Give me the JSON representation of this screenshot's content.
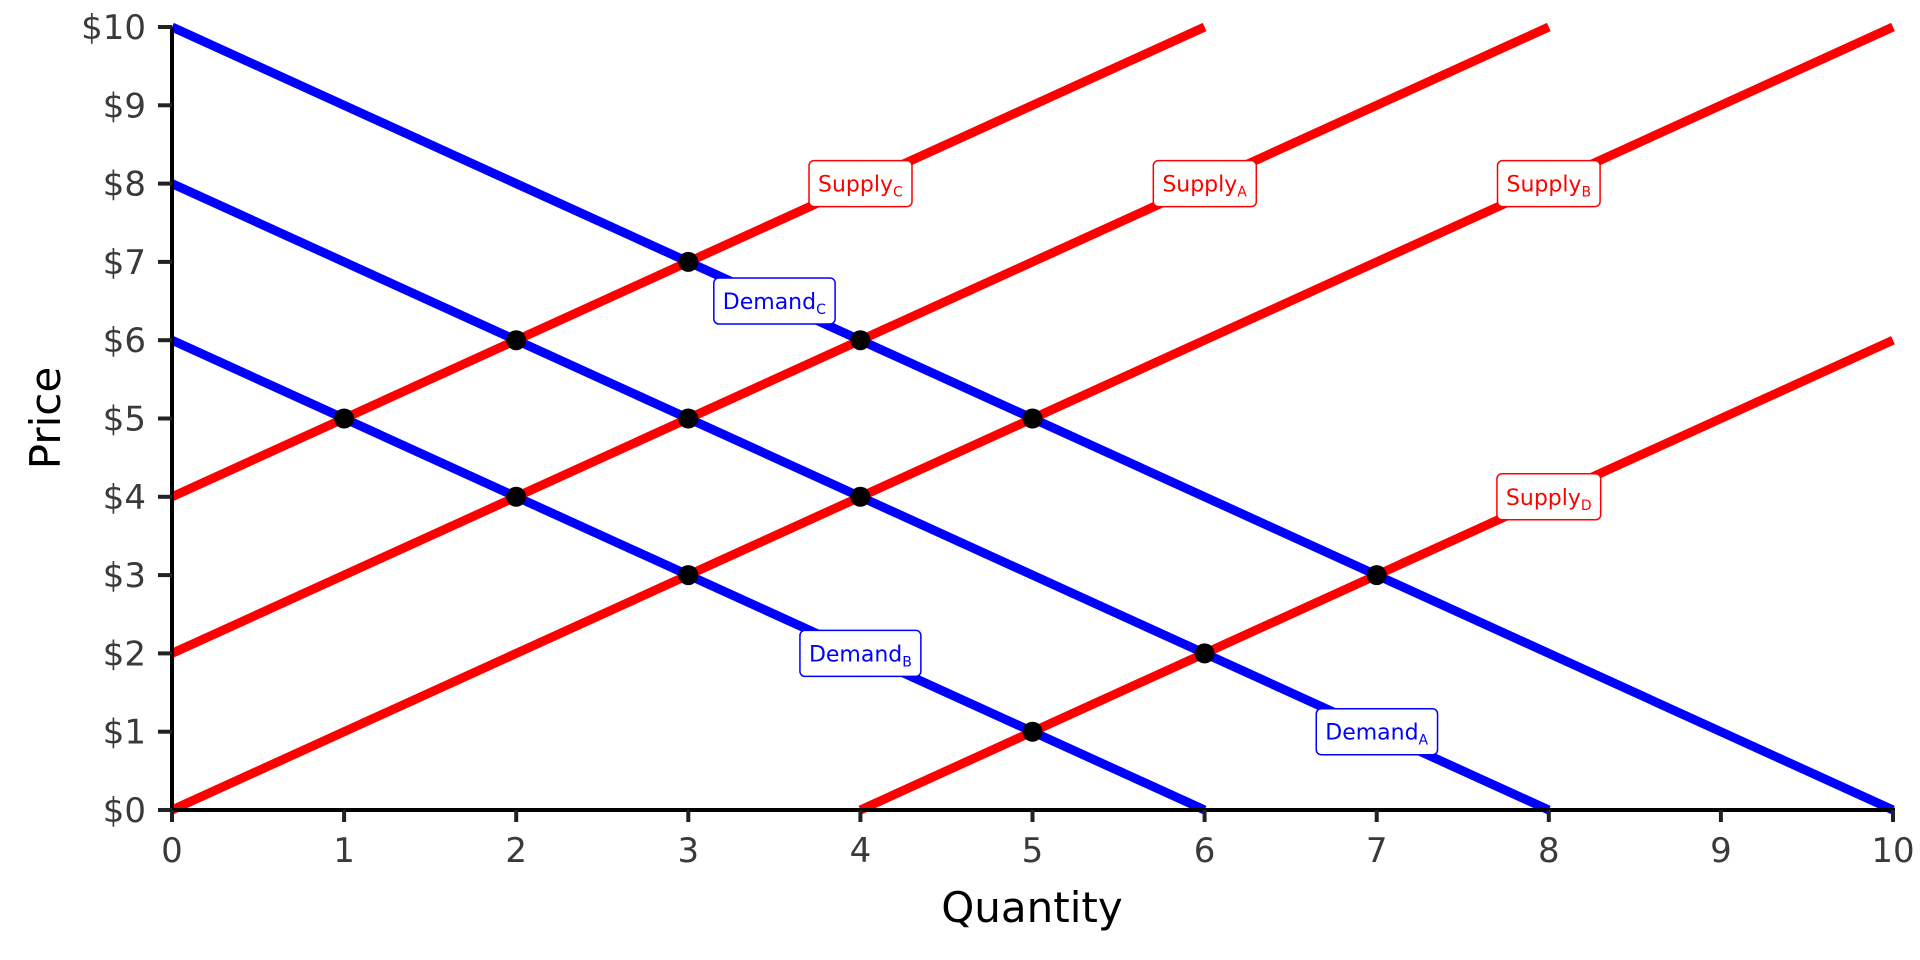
{
  "chart_data": {
    "type": "line",
    "title": "",
    "xlabel": "Quantity",
    "ylabel": "Price",
    "xlim": [
      0,
      10
    ],
    "ylim": [
      0,
      10
    ],
    "grid": false,
    "x_ticks": [
      "0",
      "1",
      "2",
      "3",
      "4",
      "5",
      "6",
      "7",
      "8",
      "9",
      "10"
    ],
    "y_ticks": [
      "$0",
      "$1",
      "$2",
      "$3",
      "$4",
      "$5",
      "$6",
      "$7",
      "$8",
      "$9",
      "$10"
    ],
    "colors": {
      "supply": "#ff0000",
      "demand": "#0000ff",
      "point": "#000000"
    },
    "series": [
      {
        "name": "Demand",
        "sub": "A",
        "kind": "demand",
        "points": [
          [
            0,
            8
          ],
          [
            8,
            0
          ]
        ],
        "label_at": [
          7,
          1
        ]
      },
      {
        "name": "Demand",
        "sub": "B",
        "kind": "demand",
        "points": [
          [
            0,
            6
          ],
          [
            6,
            0
          ]
        ],
        "label_at": [
          4,
          2
        ]
      },
      {
        "name": "Demand",
        "sub": "C",
        "kind": "demand",
        "points": [
          [
            0,
            10
          ],
          [
            10,
            0
          ]
        ],
        "label_at": [
          3.5,
          6.5
        ]
      },
      {
        "name": "Supply",
        "sub": "A",
        "kind": "supply",
        "points": [
          [
            0,
            2
          ],
          [
            8,
            10
          ]
        ],
        "label_at": [
          6,
          8
        ]
      },
      {
        "name": "Supply",
        "sub": "B",
        "kind": "supply",
        "points": [
          [
            0,
            0
          ],
          [
            10,
            10
          ]
        ],
        "label_at": [
          8,
          8
        ]
      },
      {
        "name": "Supply",
        "sub": "C",
        "kind": "supply",
        "points": [
          [
            0,
            4
          ],
          [
            6,
            10
          ]
        ],
        "label_at": [
          4,
          8
        ]
      },
      {
        "name": "Supply",
        "sub": "D",
        "kind": "supply",
        "points": [
          [
            4,
            0
          ],
          [
            10,
            6
          ]
        ],
        "label_at": [
          8,
          4
        ]
      }
    ],
    "equilibria": [
      [
        1,
        5
      ],
      [
        2,
        6
      ],
      [
        3,
        7
      ],
      [
        2,
        4
      ],
      [
        3,
        5
      ],
      [
        4,
        6
      ],
      [
        3,
        3
      ],
      [
        4,
        4
      ],
      [
        5,
        5
      ],
      [
        5,
        1
      ],
      [
        6,
        2
      ],
      [
        7,
        3
      ]
    ]
  }
}
